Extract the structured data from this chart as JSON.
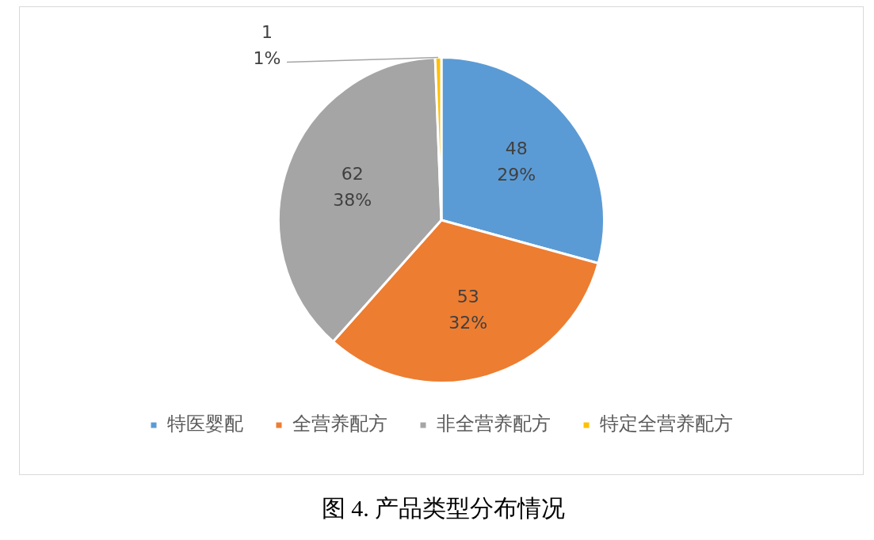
{
  "chart_data": {
    "type": "pie",
    "title": "图 4. 产品类型分布情况",
    "categories": [
      "特医婴配",
      "全营养配方",
      "非全营养配方",
      "特定全营养配方"
    ],
    "values": [
      48,
      53,
      62,
      1
    ],
    "colors": [
      "#5b9bd5",
      "#ed7d31",
      "#a5a5a5",
      "#ffc000"
    ],
    "value_labels": [
      "48\n29%",
      "53\n32%",
      "62\n38%",
      "1\n1%"
    ],
    "legend": "bottom"
  }
}
